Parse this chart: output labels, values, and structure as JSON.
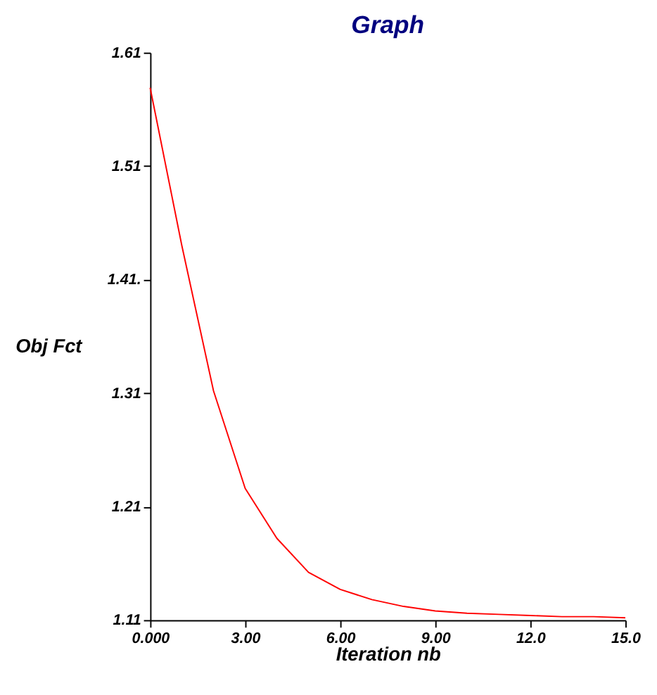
{
  "chart_data": {
    "type": "line",
    "title": "Graph",
    "xlabel": "Iteration nb",
    "ylabel": "Obj Fct",
    "x": [
      0,
      1,
      2,
      3,
      4,
      5,
      6,
      7,
      8,
      9,
      10,
      11,
      12,
      13,
      14,
      15
    ],
    "series": [
      {
        "color": "#ff0000",
        "values": [
          1.579,
          1.44,
          1.312,
          1.226,
          1.182,
          1.152,
          1.137,
          1.128,
          1.122,
          1.118,
          1.116,
          1.115,
          1.114,
          1.113,
          1.113,
          1.112
        ]
      }
    ],
    "xlim": [
      0,
      15
    ],
    "ylim": [
      1.11,
      1.61
    ],
    "xticks": [
      {
        "value": 0,
        "label": "0.000"
      },
      {
        "value": 3,
        "label": "3.00"
      },
      {
        "value": 6,
        "label": "6.00"
      },
      {
        "value": 9,
        "label": "9.00"
      },
      {
        "value": 12,
        "label": "12.0"
      },
      {
        "value": 15,
        "label": "15.0"
      }
    ],
    "yticks": [
      1.11,
      1.21,
      1.31,
      {
        "value": 1.41,
        "label": "1.41."
      },
      1.51,
      1.61
    ],
    "grid": false,
    "marker": "none",
    "line_style": "solid"
  }
}
